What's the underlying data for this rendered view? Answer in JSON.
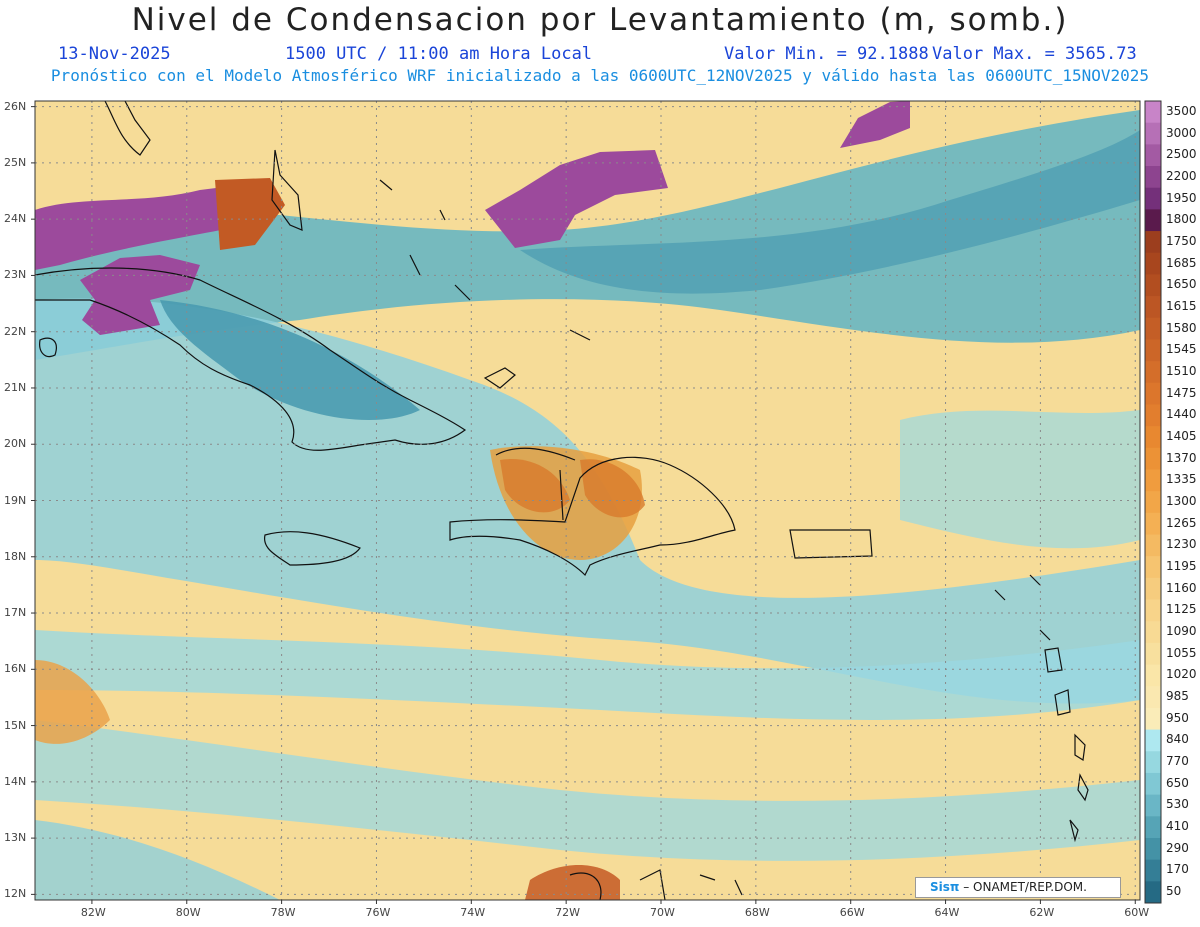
{
  "header": {
    "title": "Nivel de Condensacion por Levantamiento (m, somb.)",
    "date": "13-Nov-2025",
    "time": "1500 UTC / 11:00 am Hora Local",
    "valor_min": "Valor Min. = 92.1888",
    "valor_max": "Valor Max. = 3565.73",
    "subtitle": "Pronóstico con el Modelo Atmosférico WRF inicializado a las 0600UTC_12NOV2025 y válido hasta las  0600UTC_15NOV2025"
  },
  "map": {
    "lon_range": [
      -83.2,
      -59.9
    ],
    "lat_range": [
      11.9,
      26.1
    ],
    "lat_labels": [
      "26N",
      "25N",
      "24N",
      "23N",
      "22N",
      "21N",
      "20N",
      "19N",
      "18N",
      "17N",
      "16N",
      "15N",
      "14N",
      "13N",
      "12N"
    ],
    "lat_values": [
      26,
      25,
      24,
      23,
      22,
      21,
      20,
      19,
      18,
      17,
      16,
      15,
      14,
      13,
      12
    ],
    "lon_labels": [
      "82W",
      "80W",
      "78W",
      "76W",
      "74W",
      "72W",
      "70W",
      "68W",
      "66W",
      "64W",
      "62W",
      "60W"
    ],
    "lon_values": [
      -82,
      -80,
      -78,
      -76,
      -74,
      -72,
      -70,
      -68,
      -66,
      -64,
      -62,
      -60
    ],
    "background_color": "#f6dc98"
  },
  "colorbar": {
    "levels": [
      "3500",
      "3000",
      "2500",
      "2200",
      "1950",
      "1800",
      "1750",
      "1685",
      "1650",
      "1615",
      "1580",
      "1545",
      "1510",
      "1475",
      "1440",
      "1405",
      "1370",
      "1335",
      "1300",
      "1265",
      "1230",
      "1195",
      "1160",
      "1125",
      "1090",
      "1055",
      "1020",
      "985",
      "950",
      "840",
      "770",
      "650",
      "530",
      "410",
      "290",
      "170",
      "50"
    ],
    "colors": [
      "#c884c8",
      "#b670b6",
      "#a35aa3",
      "#8d448f",
      "#74307a",
      "#5a1a4c",
      "#9c3e1e",
      "#a8461e",
      "#b24e20",
      "#bc5624",
      "#c45e26",
      "#cc6628",
      "#d46e2a",
      "#dc762c",
      "#e27e2e",
      "#e88830",
      "#ec9236",
      "#f09c3e",
      "#f2a648",
      "#f4b054",
      "#f4ba62",
      "#f6c470",
      "#f6cc7e",
      "#f8d48a",
      "#f8da94",
      "#f8e09e",
      "#fae6a8",
      "#fae8b0",
      "#faecb8",
      "#aee8f0",
      "#96d8e0",
      "#80c8d4",
      "#6ab6c6",
      "#56a4b6",
      "#4492a6",
      "#347e96",
      "#256a84"
    ]
  },
  "credit": {
    "brand": "Sisπ",
    "org": "– ONAMET/REP.DOM."
  }
}
